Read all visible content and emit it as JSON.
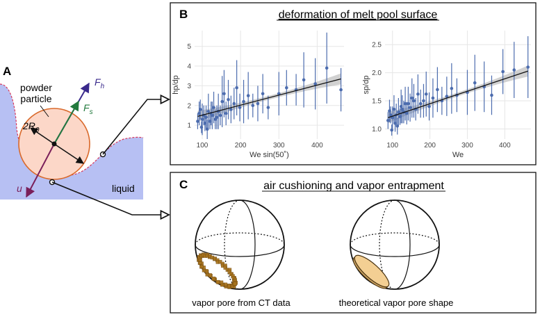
{
  "panel_a": {
    "letter": "A",
    "particle_label_line1": "powder",
    "particle_label_line2": "particle",
    "radius_label": "2R",
    "radius_subscript": "0",
    "force_h_label": "F",
    "force_h_subscript": "h",
    "force_s_label": "F",
    "force_s_subscript": "s",
    "velocity_label": "u",
    "liquid_label": "liquid",
    "colors": {
      "liquid": "#b7c0f3",
      "particle_fill": "#fcd7c8",
      "particle_stroke": "#d9692b",
      "force_h": "#3a2a8c",
      "force_s": "#237a3e",
      "velocity": "#7a1f5a",
      "surface_dash": "#d9385b"
    }
  },
  "panel_b": {
    "letter": "B",
    "title": "deformation of melt pool surface",
    "colors": {
      "point": "#4c6cae",
      "fit": "#111111",
      "band": "#bdbdbd"
    }
  },
  "panel_c": {
    "letter": "C",
    "title": "air cushioning and vapor entrapment",
    "left_caption": "vapor pore from CT data",
    "right_caption": "theoretical vapor pore shape",
    "colors": {
      "ct_pore": "#a8741e",
      "theory_pore": "#f3cf93",
      "theory_stroke": "#4a3310"
    }
  },
  "chart_data": [
    {
      "type": "scatter",
      "title": "",
      "xlabel": "We sin(50˚)",
      "ylabel": "hp/dp",
      "xlim": [
        80,
        470
      ],
      "ylim": [
        0.3,
        5.8
      ],
      "xticks": [
        100,
        200,
        300,
        400
      ],
      "yticks": [
        1,
        2,
        3,
        4,
        5
      ],
      "x": [
        88,
        92,
        95,
        98,
        100,
        104,
        107,
        110,
        113,
        116,
        120,
        123,
        126,
        130,
        134,
        138,
        142,
        147,
        152,
        157,
        162,
        168,
        175,
        183,
        190,
        198,
        208,
        220,
        232,
        245,
        258,
        272,
        300,
        320,
        345,
        365,
        395,
        425,
        462
      ],
      "y": [
        1.2,
        1.6,
        1.8,
        0.9,
        1.3,
        1.5,
        1.1,
        1.4,
        0.8,
        1.7,
        1.2,
        1.6,
        1.5,
        1.9,
        1.3,
        1.4,
        1.7,
        1.5,
        2.2,
        2.6,
        1.6,
        2.3,
        1.8,
        2.1,
        2.9,
        1.9,
        2.2,
        2.5,
        2.0,
        2.1,
        2.6,
        1.9,
        2.6,
        2.9,
        2.8,
        3.3,
        3.1,
        3.9,
        2.8
      ],
      "err": [
        0.4,
        0.6,
        0.5,
        0.3,
        0.8,
        0.5,
        0.4,
        0.6,
        0.5,
        0.9,
        0.4,
        0.6,
        0.7,
        0.8,
        0.5,
        0.6,
        0.9,
        0.5,
        1.3,
        1.2,
        0.6,
        1.0,
        0.7,
        0.8,
        1.4,
        0.7,
        1.1,
        1.2,
        0.6,
        0.9,
        1.0,
        0.6,
        1.1,
        0.9,
        0.8,
        1.4,
        1.3,
        1.8,
        1.1
      ],
      "fit": {
        "x0": 88,
        "y0": 1.45,
        "x1": 462,
        "y1": 3.35
      }
    },
    {
      "type": "scatter",
      "title": "",
      "xlabel": "We",
      "ylabel": "sp/dp",
      "xlim": [
        80,
        470
      ],
      "ylim": [
        0.82,
        2.75
      ],
      "xticks": [
        100,
        200,
        300,
        400
      ],
      "yticks": [
        1.0,
        1.5,
        2.0,
        2.5
      ],
      "x": [
        88,
        92,
        95,
        98,
        100,
        104,
        107,
        110,
        113,
        116,
        120,
        123,
        126,
        130,
        134,
        138,
        142,
        147,
        152,
        157,
        162,
        168,
        175,
        183,
        190,
        198,
        208,
        220,
        232,
        245,
        258,
        272,
        300,
        320,
        345,
        365,
        395,
        425,
        462
      ],
      "y": [
        1.15,
        1.32,
        1.25,
        0.98,
        1.2,
        1.35,
        1.1,
        1.25,
        1.05,
        1.3,
        1.22,
        1.4,
        1.35,
        1.3,
        1.45,
        1.28,
        1.45,
        1.38,
        1.55,
        1.5,
        1.35,
        1.62,
        1.45,
        1.5,
        1.62,
        1.4,
        1.55,
        1.7,
        1.5,
        1.58,
        1.72,
        1.6,
        1.65,
        1.82,
        1.75,
        1.6,
        2.02,
        2.05,
        2.1
      ],
      "err": [
        0.15,
        0.2,
        0.15,
        0.1,
        0.2,
        0.25,
        0.15,
        0.2,
        0.15,
        0.25,
        0.15,
        0.3,
        0.25,
        0.2,
        0.3,
        0.2,
        0.3,
        0.25,
        0.35,
        0.3,
        0.2,
        0.35,
        0.25,
        0.3,
        0.4,
        0.25,
        0.35,
        0.4,
        0.25,
        0.35,
        0.45,
        0.3,
        0.4,
        0.5,
        0.45,
        0.35,
        0.4,
        0.5,
        0.55
      ],
      "fit": {
        "x0": 88,
        "y0": 1.2,
        "x1": 462,
        "y1": 2.03
      }
    }
  ]
}
